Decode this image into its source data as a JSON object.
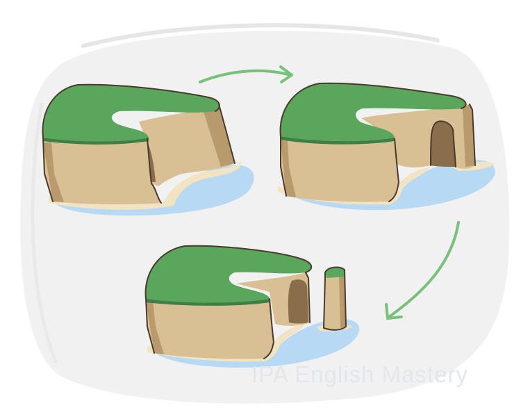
{
  "illustration": {
    "stages": [
      {
        "id": "stage-1",
        "landform": "headland with cave"
      },
      {
        "id": "stage-2",
        "landform": "sea arch"
      },
      {
        "id": "stage-3",
        "landform": "sea stack"
      }
    ],
    "colors": {
      "grass": "#5aa65d",
      "grass_edge": "#3d7f45",
      "rock": "#d8bf94",
      "rock_shadow": "#b89a6c",
      "rock_dark": "#8a6d4a",
      "outline": "#4a3a2c",
      "sand": "#f2e3c3",
      "water": "#b7d9f4",
      "arrow": "#79c17b",
      "backdrop": "#f1f1f1"
    }
  },
  "watermark": {
    "text": "IPA English Mastery",
    "color": "#e3e6ea"
  }
}
